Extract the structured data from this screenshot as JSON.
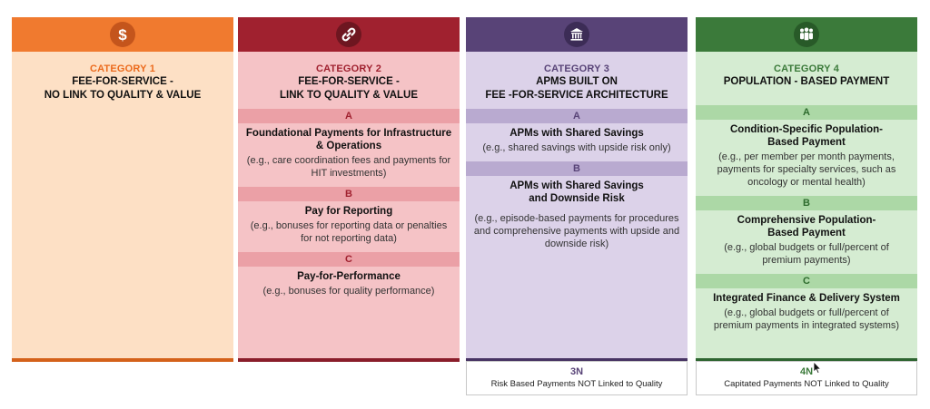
{
  "colors": {
    "category1": "#f07a2f",
    "category2": "#a0212f",
    "category3": "#584377",
    "category4": "#3b7a3a"
  },
  "categories": [
    {
      "icon": "dollar-icon",
      "label": "CATEGORY 1",
      "title_line1": "FEE-FOR-SERVICE -",
      "title_line2": "NO LINK TO QUALITY & VALUE",
      "subs": []
    },
    {
      "icon": "link-icon",
      "label": "CATEGORY 2",
      "title_line1": "FEE-FOR-SERVICE -",
      "title_line2": "LINK TO QUALITY & VALUE",
      "subs": [
        {
          "letter": "A",
          "title": "Foundational Payments for Infrastructure & Operations",
          "desc": "(e.g., care coordination fees and payments for HIT investments)"
        },
        {
          "letter": "B",
          "title": "Pay for Reporting",
          "desc": "(e.g., bonuses for reporting data or penalties for not reporting data)"
        },
        {
          "letter": "C",
          "title": "Pay-for-Performance",
          "desc": "(e.g., bonuses for quality performance)"
        }
      ]
    },
    {
      "icon": "building-icon",
      "label": "CATEGORY 3",
      "title_line1": "APMS BUILT ON",
      "title_line2": "FEE -FOR-SERVICE ARCHITECTURE",
      "subs": [
        {
          "letter": "A",
          "title": "APMs with Shared Savings",
          "desc": "(e.g., shared savings with upside risk only)"
        },
        {
          "letter": "B",
          "title": "APMs with Shared Savings and Downside Risk",
          "desc": "(e.g., episode-based payments for procedures and comprehensive payments with upside and downside risk)"
        }
      ]
    },
    {
      "icon": "people-icon",
      "label": "CATEGORY 4",
      "title_line1": "POPULATION - BASED PAYMENT",
      "title_line2": "",
      "subs": [
        {
          "letter": "A",
          "title": "Condition-Specific Population-Based Payment",
          "desc": "(e.g., per member per month payments, payments for specialty services, such as oncology or mental health)"
        },
        {
          "letter": "B",
          "title": "Comprehensive Population-Based Payment",
          "desc": "(e.g., global budgets or full/percent of premium payments)"
        },
        {
          "letter": "C",
          "title": "Integrated Finance & Delivery System",
          "desc": "(e.g., global budgets or full/percent of premium payments in integrated systems)"
        }
      ]
    }
  ],
  "footers": [
    {
      "code": "3N",
      "desc": "Risk Based Payments NOT Linked to Quality"
    },
    {
      "code": "4N",
      "desc": "Capitated Payments NOT Linked to Quality"
    }
  ]
}
